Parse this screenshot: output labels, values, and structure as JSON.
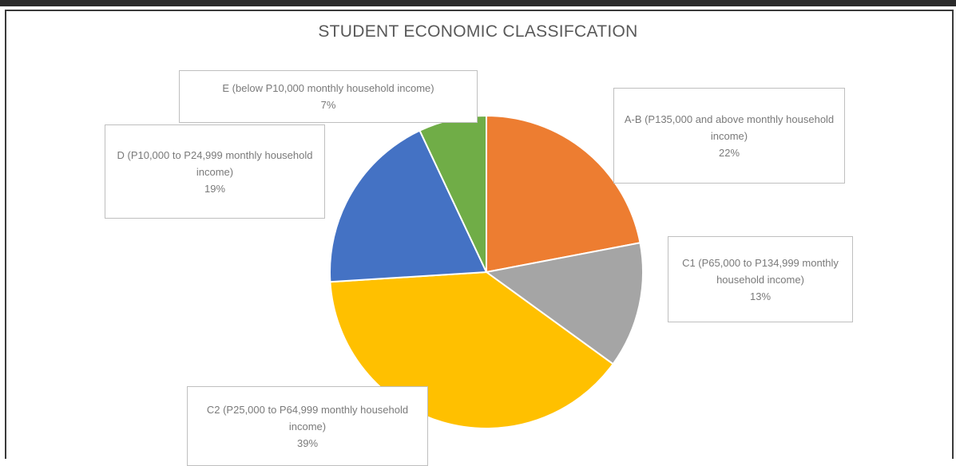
{
  "chart_data": {
    "type": "pie",
    "title": "STUDENT ECONOMIC CLASSIFCATION",
    "slices": [
      {
        "label": "A-B (P135,000 and above monthly household income)",
        "value": 22,
        "pct_label": "22%",
        "color": "#ED7D31"
      },
      {
        "label": "C1 (P65,000 to P134,999 monthly household income)",
        "value": 13,
        "pct_label": "13%",
        "color": "#A5A5A5"
      },
      {
        "label": "C2 (P25,000 to P64,999 monthly household income)",
        "value": 39,
        "pct_label": "39%",
        "color": "#FFC000"
      },
      {
        "label": "D (P10,000 to P24,999 monthly household income)",
        "value": 19,
        "pct_label": "19%",
        "color": "#4472C4"
      },
      {
        "label": "E (below P10,000 monthly household income)",
        "value": 7,
        "pct_label": "7%",
        "color": "#70AD47"
      }
    ]
  }
}
